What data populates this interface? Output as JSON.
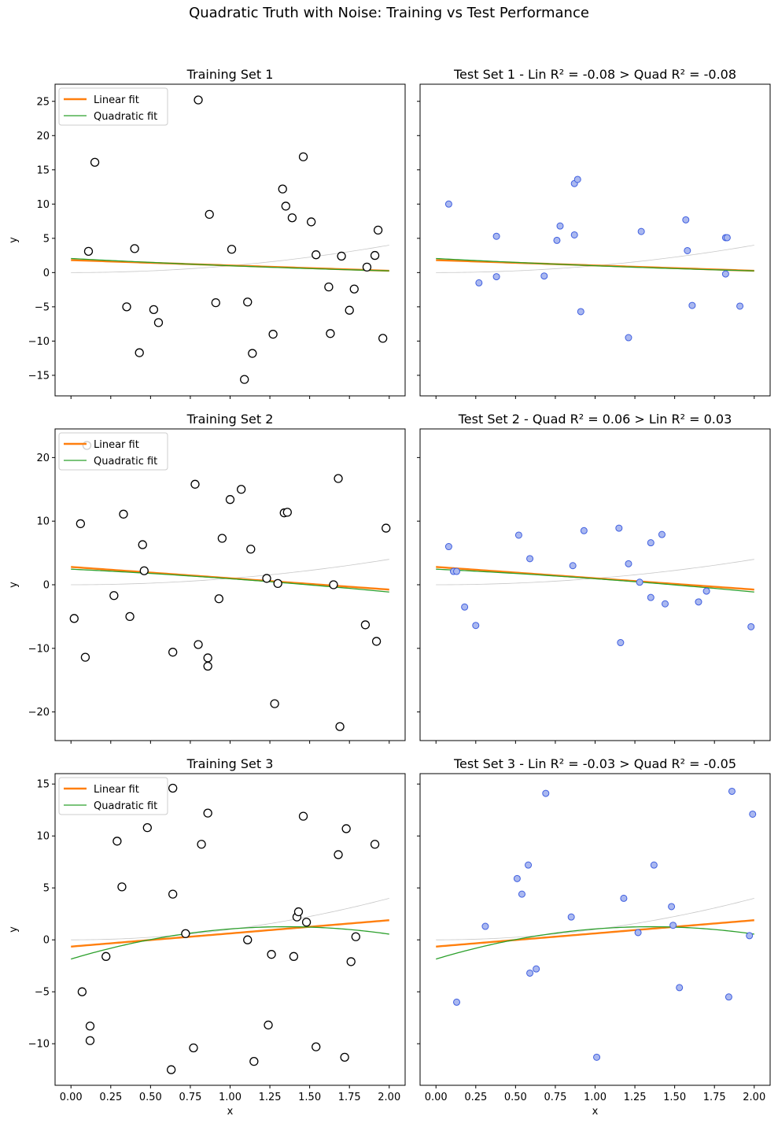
{
  "suptitle": "Quadratic Truth with Noise: Training vs Test Performance",
  "colors": {
    "linear": "#ff7f0e",
    "quadratic": "#2ca02c",
    "truth": "#c8c8c8",
    "train_edge": "#000000",
    "test_face": "#aab8f0",
    "test_edge": "#3f5fe0"
  },
  "legend": {
    "linear": "Linear fit",
    "quadratic": "Quadratic fit"
  },
  "chart_data": [
    {
      "type": "scatter",
      "title": "Training Set 1",
      "xlabel": "",
      "ylabel": "y",
      "xlim": [
        -0.1,
        2.1
      ],
      "ylim": [
        -18,
        27.5
      ],
      "yticks": [
        -15,
        -10,
        -5,
        0,
        5,
        10,
        15,
        20,
        25
      ],
      "xticks": [
        0.0,
        0.25,
        0.5,
        0.75,
        1.0,
        1.25,
        1.5,
        1.75,
        2.0
      ],
      "xticklabels": [
        "",
        "",
        "",
        "",
        "",
        "",
        "",
        "",
        ""
      ],
      "legend": "top-left",
      "style": "train",
      "linear": [
        1.82,
        -0.78
      ],
      "quadratic": [
        2.05,
        -1.2,
        0.15
      ],
      "points": [
        [
          0.11,
          3.1
        ],
        [
          0.15,
          16.1
        ],
        [
          0.35,
          -5.0
        ],
        [
          0.4,
          3.5
        ],
        [
          0.43,
          -11.7
        ],
        [
          0.52,
          -5.4
        ],
        [
          0.55,
          -7.3
        ],
        [
          0.8,
          25.2
        ],
        [
          0.87,
          8.5
        ],
        [
          0.91,
          -4.4
        ],
        [
          1.01,
          3.4
        ],
        [
          1.09,
          -15.6
        ],
        [
          1.11,
          -4.3
        ],
        [
          1.14,
          -11.8
        ],
        [
          1.27,
          -9.0
        ],
        [
          1.33,
          12.2
        ],
        [
          1.35,
          9.7
        ],
        [
          1.39,
          8.0
        ],
        [
          1.46,
          16.9
        ],
        [
          1.51,
          7.4
        ],
        [
          1.54,
          2.6
        ],
        [
          1.62,
          -2.1
        ],
        [
          1.63,
          -8.9
        ],
        [
          1.7,
          2.4
        ],
        [
          1.75,
          -5.5
        ],
        [
          1.78,
          -2.4
        ],
        [
          1.86,
          0.8
        ],
        [
          1.91,
          2.5
        ],
        [
          1.93,
          6.2
        ],
        [
          1.96,
          -9.6
        ]
      ]
    },
    {
      "type": "scatter",
      "title": "Test Set 1 - Lin R² = -0.08 > Quad R² = -0.08",
      "xlabel": "",
      "ylabel": "",
      "xlim": [
        -0.1,
        2.1
      ],
      "ylim": [
        -18,
        27.5
      ],
      "yticks": [
        -15,
        -10,
        -5,
        0,
        5,
        10,
        15,
        20,
        25
      ],
      "xticks": [
        0.0,
        0.25,
        0.5,
        0.75,
        1.0,
        1.25,
        1.5,
        1.75,
        2.0
      ],
      "xticklabels": [
        "",
        "",
        "",
        "",
        "",
        "",
        "",
        "",
        ""
      ],
      "legend": "none",
      "style": "test",
      "linear": [
        1.82,
        -0.78
      ],
      "quadratic": [
        2.05,
        -1.2,
        0.15
      ],
      "points": [
        [
          0.08,
          10.0
        ],
        [
          0.27,
          -1.5
        ],
        [
          0.38,
          5.3
        ],
        [
          0.38,
          -0.6
        ],
        [
          0.68,
          -0.5
        ],
        [
          0.76,
          4.7
        ],
        [
          0.78,
          6.8
        ],
        [
          0.87,
          13.0
        ],
        [
          0.87,
          5.5
        ],
        [
          0.89,
          13.6
        ],
        [
          0.91,
          -5.7
        ],
        [
          1.21,
          -9.5
        ],
        [
          1.29,
          6.0
        ],
        [
          1.57,
          7.7
        ],
        [
          1.58,
          3.2
        ],
        [
          1.61,
          -4.8
        ],
        [
          1.82,
          -0.2
        ],
        [
          1.82,
          5.1
        ],
        [
          1.83,
          5.1
        ],
        [
          1.91,
          -4.9
        ]
      ]
    },
    {
      "type": "scatter",
      "title": "Training Set 2",
      "xlabel": "",
      "ylabel": "y",
      "xlim": [
        -0.1,
        2.1
      ],
      "ylim": [
        -24.5,
        24.5
      ],
      "yticks": [
        -20,
        -10,
        0,
        10,
        20
      ],
      "xticks": [
        0.0,
        0.25,
        0.5,
        0.75,
        1.0,
        1.25,
        1.5,
        1.75,
        2.0
      ],
      "xticklabels": [
        "",
        "",
        "",
        "",
        "",
        "",
        "",
        "",
        ""
      ],
      "legend": "top-left",
      "style": "train",
      "linear": [
        2.8,
        -1.78
      ],
      "quadratic": [
        2.45,
        -1.2,
        -0.3
      ],
      "points": [
        [
          0.02,
          -5.3
        ],
        [
          0.06,
          9.6
        ],
        [
          0.09,
          -11.4
        ],
        [
          0.1,
          21.9
        ],
        [
          0.27,
          -1.7
        ],
        [
          0.33,
          11.1
        ],
        [
          0.37,
          -5.0
        ],
        [
          0.45,
          6.3
        ],
        [
          0.46,
          2.2
        ],
        [
          0.64,
          -10.6
        ],
        [
          0.78,
          15.8
        ],
        [
          0.8,
          -9.4
        ],
        [
          0.86,
          -11.5
        ],
        [
          0.86,
          -12.8
        ],
        [
          0.93,
          -2.2
        ],
        [
          0.95,
          7.3
        ],
        [
          1.0,
          13.4
        ],
        [
          1.07,
          15.0
        ],
        [
          1.13,
          5.6
        ],
        [
          1.23,
          1.0
        ],
        [
          1.28,
          -18.7
        ],
        [
          1.3,
          0.2
        ],
        [
          1.34,
          11.3
        ],
        [
          1.36,
          11.4
        ],
        [
          1.65,
          0.0
        ],
        [
          1.68,
          16.7
        ],
        [
          1.69,
          -22.3
        ],
        [
          1.85,
          -6.3
        ],
        [
          1.92,
          -8.9
        ],
        [
          1.98,
          8.9
        ]
      ]
    },
    {
      "type": "scatter",
      "title": "Test Set 2 - Quad R² = 0.06 > Lin R² = 0.03",
      "xlabel": "",
      "ylabel": "",
      "xlim": [
        -0.1,
        2.1
      ],
      "ylim": [
        -24.5,
        24.5
      ],
      "yticks": [
        -20,
        -10,
        0,
        10,
        20
      ],
      "xticks": [
        0.0,
        0.25,
        0.5,
        0.75,
        1.0,
        1.25,
        1.5,
        1.75,
        2.0
      ],
      "xticklabels": [
        "",
        "",
        "",
        "",
        "",
        "",
        "",
        "",
        ""
      ],
      "legend": "none",
      "style": "test",
      "linear": [
        2.8,
        -1.78
      ],
      "quadratic": [
        2.45,
        -1.2,
        -0.3
      ],
      "points": [
        [
          0.08,
          6.0
        ],
        [
          0.11,
          2.1
        ],
        [
          0.13,
          2.1
        ],
        [
          0.18,
          -3.5
        ],
        [
          0.25,
          -6.4
        ],
        [
          0.52,
          7.8
        ],
        [
          0.59,
          4.1
        ],
        [
          0.86,
          3.0
        ],
        [
          0.93,
          8.5
        ],
        [
          1.15,
          8.9
        ],
        [
          1.16,
          -9.1
        ],
        [
          1.21,
          3.3
        ],
        [
          1.28,
          0.4
        ],
        [
          1.35,
          6.6
        ],
        [
          1.35,
          -2.0
        ],
        [
          1.42,
          7.9
        ],
        [
          1.44,
          -3.0
        ],
        [
          1.65,
          -2.7
        ],
        [
          1.7,
          -1.0
        ],
        [
          1.98,
          -6.6
        ]
      ]
    },
    {
      "type": "scatter",
      "title": "Training Set 3",
      "xlabel": "x",
      "ylabel": "y",
      "xlim": [
        -0.1,
        2.1
      ],
      "ylim": [
        -14,
        16
      ],
      "yticks": [
        -10,
        -5,
        0,
        5,
        10,
        15
      ],
      "xticks": [
        0.0,
        0.25,
        0.5,
        0.75,
        1.0,
        1.25,
        1.5,
        1.75,
        2.0
      ],
      "xticklabels": [
        "0.00",
        "0.25",
        "0.50",
        "0.75",
        "1.00",
        "1.25",
        "1.50",
        "1.75",
        "2.00"
      ],
      "legend": "top-left",
      "style": "train",
      "linear": [
        -0.65,
        1.27
      ],
      "quadratic": [
        -1.85,
        4.6,
        -1.7
      ],
      "points": [
        [
          0.07,
          -5.0
        ],
        [
          0.12,
          -8.3
        ],
        [
          0.12,
          -9.7
        ],
        [
          0.22,
          -1.6
        ],
        [
          0.29,
          9.5
        ],
        [
          0.32,
          5.1
        ],
        [
          0.48,
          10.8
        ],
        [
          0.64,
          14.6
        ],
        [
          0.64,
          4.4
        ],
        [
          0.63,
          -12.5
        ],
        [
          0.72,
          0.6
        ],
        [
          0.77,
          -10.4
        ],
        [
          0.82,
          9.2
        ],
        [
          0.86,
          12.2
        ],
        [
          1.11,
          0.0
        ],
        [
          1.15,
          -11.7
        ],
        [
          1.24,
          -8.2
        ],
        [
          1.26,
          -1.4
        ],
        [
          1.4,
          -1.6
        ],
        [
          1.42,
          2.2
        ],
        [
          1.43,
          2.7
        ],
        [
          1.46,
          11.9
        ],
        [
          1.48,
          1.7
        ],
        [
          1.54,
          -10.3
        ],
        [
          1.68,
          8.2
        ],
        [
          1.72,
          -11.3
        ],
        [
          1.73,
          10.7
        ],
        [
          1.76,
          -2.1
        ],
        [
          1.79,
          0.3
        ],
        [
          1.91,
          9.2
        ]
      ]
    },
    {
      "type": "scatter",
      "title": "Test Set 3 - Lin R² = -0.03 > Quad R² = -0.05",
      "xlabel": "x",
      "ylabel": "",
      "xlim": [
        -0.1,
        2.1
      ],
      "ylim": [
        -14,
        16
      ],
      "yticks": [
        -10,
        -5,
        0,
        5,
        10,
        15
      ],
      "xticks": [
        0.0,
        0.25,
        0.5,
        0.75,
        1.0,
        1.25,
        1.5,
        1.75,
        2.0
      ],
      "xticklabels": [
        "0.00",
        "0.25",
        "0.50",
        "0.75",
        "1.00",
        "1.25",
        "1.50",
        "1.75",
        "2.00"
      ],
      "legend": "none",
      "style": "test",
      "linear": [
        -0.65,
        1.27
      ],
      "quadratic": [
        -1.85,
        4.6,
        -1.7
      ],
      "points": [
        [
          0.13,
          -6.0
        ],
        [
          0.31,
          1.3
        ],
        [
          0.51,
          5.9
        ],
        [
          0.54,
          4.4
        ],
        [
          0.58,
          7.2
        ],
        [
          0.59,
          -3.2
        ],
        [
          0.63,
          -2.8
        ],
        [
          0.69,
          14.1
        ],
        [
          0.85,
          2.2
        ],
        [
          1.01,
          -11.3
        ],
        [
          1.18,
          4.0
        ],
        [
          1.27,
          0.7
        ],
        [
          1.37,
          7.2
        ],
        [
          1.48,
          3.2
        ],
        [
          1.49,
          1.4
        ],
        [
          1.53,
          -4.6
        ],
        [
          1.84,
          -5.5
        ],
        [
          1.86,
          14.3
        ],
        [
          1.97,
          0.4
        ],
        [
          1.99,
          12.1
        ]
      ]
    }
  ]
}
